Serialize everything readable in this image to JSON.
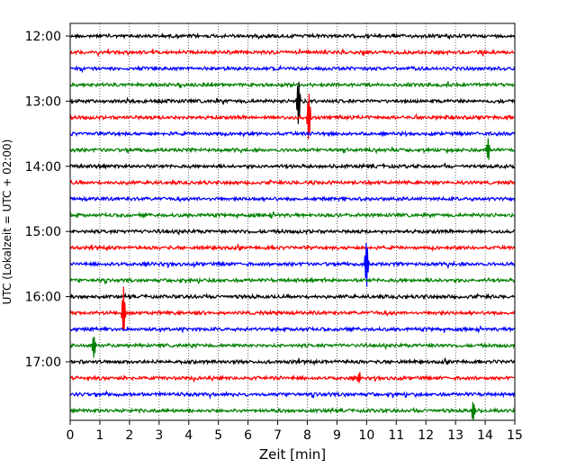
{
  "chart_data": {
    "type": "line",
    "title": "",
    "xlabel": "Zeit  [min]",
    "ylabel": "UTC (Lokalzeit = UTC + 02:00)",
    "xlim": [
      0,
      15
    ],
    "x_ticks": [
      0,
      1,
      2,
      3,
      4,
      5,
      6,
      7,
      8,
      9,
      10,
      11,
      12,
      13,
      14,
      15
    ],
    "y_tick_labels": [
      "12:00",
      "13:00",
      "14:00",
      "15:00",
      "16:00",
      "17:00"
    ],
    "grid": "vertical-dotted",
    "rows_per_hour": 4,
    "trace_start": "12:00",
    "trace_end": "17:45",
    "trace_interval_minutes": 15,
    "color_cycle": [
      "#000000",
      "#ff0000",
      "#0000ff",
      "#008000"
    ],
    "events": [
      {
        "trace": "13:00",
        "minute": 7.7,
        "amplitude": "large"
      },
      {
        "trace": "13:15",
        "minute": 8.05,
        "amplitude": "large"
      },
      {
        "trace": "13:45",
        "minute": 14.1,
        "amplitude": "medium"
      },
      {
        "trace": "15:30",
        "minute": 10.0,
        "amplitude": "large"
      },
      {
        "trace": "16:15",
        "minute": 1.8,
        "amplitude": "large"
      },
      {
        "trace": "16:45",
        "minute": 0.8,
        "amplitude": "medium"
      },
      {
        "trace": "17:15",
        "minute": 9.75,
        "amplitude": "small"
      },
      {
        "trace": "17:45",
        "minute": 13.6,
        "amplitude": "medium"
      }
    ]
  }
}
